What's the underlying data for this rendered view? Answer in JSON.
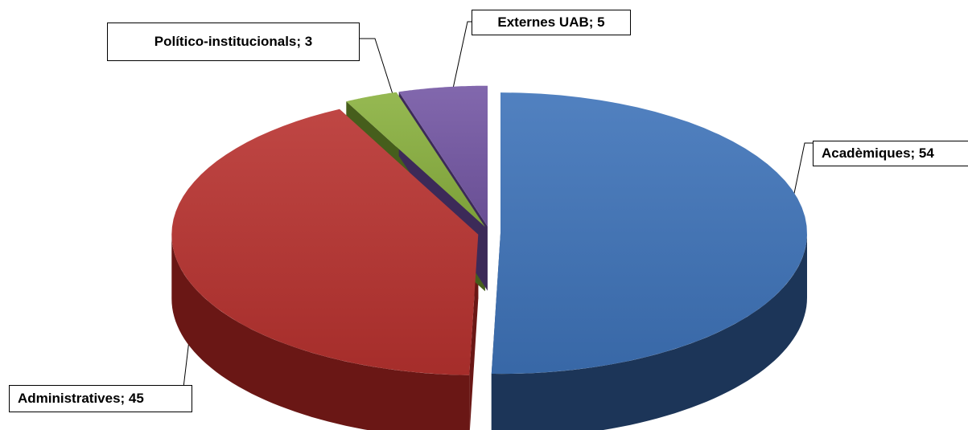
{
  "chart_data": {
    "type": "pie",
    "title": "",
    "style": "3d-exploded",
    "slices": [
      {
        "label": "Acadèmiques",
        "value": 54,
        "color": "#3e73b9",
        "side_color": "#1c3558",
        "display": "Acadèmiques;  54"
      },
      {
        "label": "Administratives",
        "value": 45,
        "color": "#b8322f",
        "side_color": "#6a1715",
        "display": "Administratives;  45"
      },
      {
        "label": "Político-institucionals",
        "value": 3,
        "color": "#8ab13f",
        "side_color": "#465e1c",
        "display": "Político-institucionals;  3"
      },
      {
        "label": "Externes UAB",
        "value": 5,
        "color": "#7457a4",
        "side_color": "#3c2a58",
        "display": "Externes UAB;  5"
      }
    ]
  }
}
